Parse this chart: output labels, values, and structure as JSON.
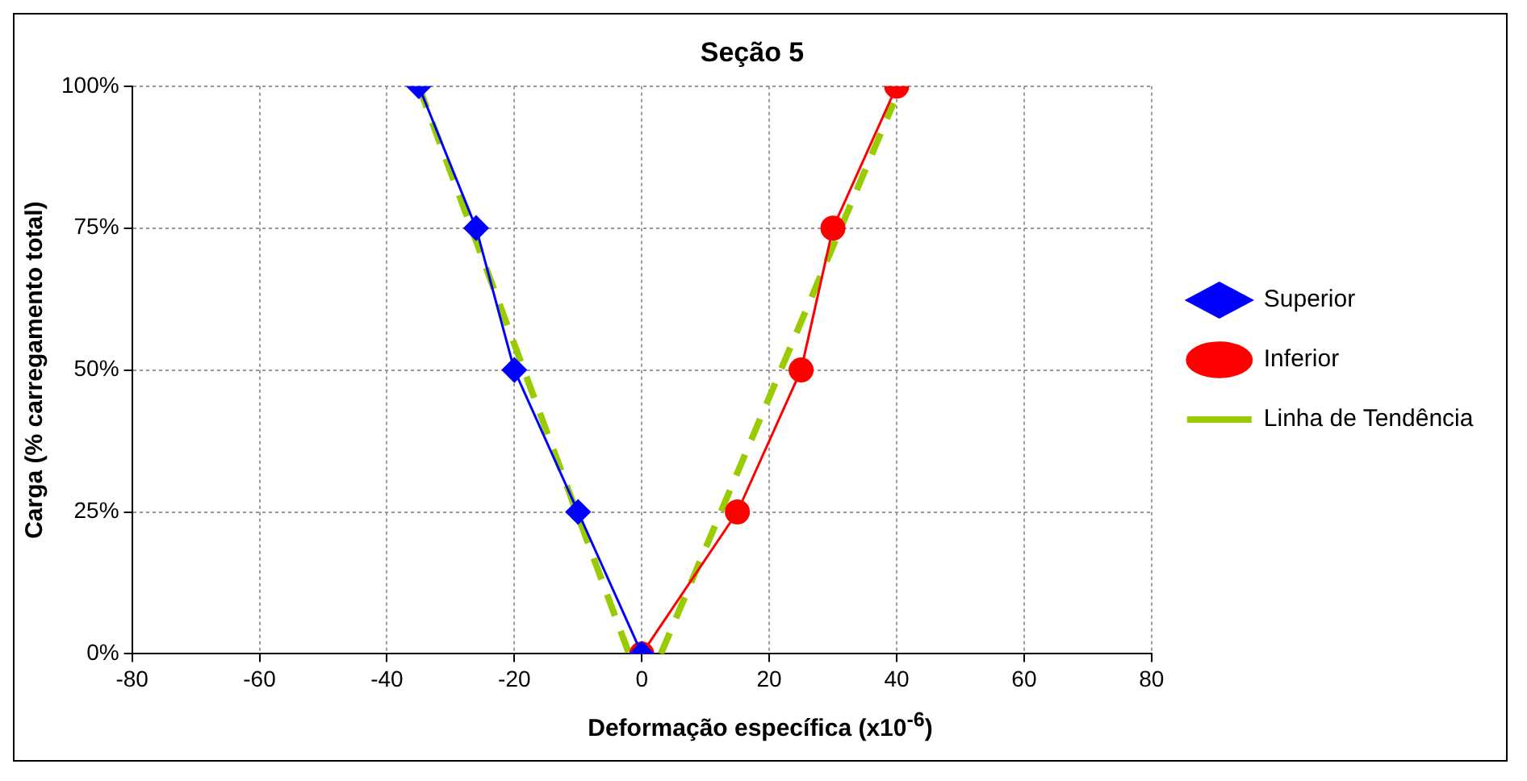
{
  "chart_data": {
    "type": "line",
    "title": "Seção 5",
    "xlabel": "Deformação específica (x10$^{-6}$)",
    "ylabel": "Carga (% carregamento total)",
    "xlim": [
      -80,
      80
    ],
    "xticks": [
      -80,
      -60,
      -40,
      -20,
      0,
      20,
      40,
      60,
      80
    ],
    "ylim": [
      0,
      100
    ],
    "yticks": [
      {
        "value": 0,
        "label": "0%"
      },
      {
        "value": 25,
        "label": "25%"
      },
      {
        "value": 50,
        "label": "50%"
      },
      {
        "value": 75,
        "label": "75%"
      },
      {
        "value": 100,
        "label": "100%"
      }
    ],
    "grid": true,
    "legend": "right",
    "series": [
      {
        "name": "Superior",
        "color": "#0000ff",
        "marker": "diamond",
        "line_style": "solid",
        "x": [
          0,
          -10,
          -20,
          -26,
          -35
        ],
        "values": [
          0,
          25,
          50,
          75,
          100
        ]
      },
      {
        "name": "Inferior",
        "color": "#ff0000",
        "marker": "circle",
        "line_style": "solid",
        "x": [
          0,
          15,
          25,
          30,
          40
        ],
        "values": [
          0,
          25,
          50,
          75,
          100
        ]
      },
      {
        "name": "Linha de Tendência",
        "color": "#99cc00",
        "marker": "none",
        "line_style": "dashed",
        "x": [
          -35,
          -2,
          0,
          3,
          39.5
        ],
        "values": [
          100,
          0,
          null,
          0,
          97
        ]
      }
    ]
  }
}
